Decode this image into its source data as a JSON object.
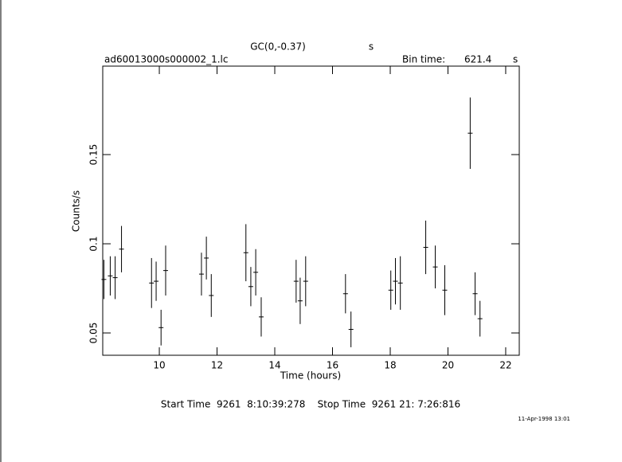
{
  "chart_data": {
    "type": "errorbar",
    "title": "GC(0,-0.37)",
    "title_unit": "s",
    "file_name": "ad60013000s000002_1.lc",
    "bin_time_label": "Bin time:",
    "bin_time": 621.4,
    "bin_time_unit": "s",
    "x_label": "Time (hours)",
    "y_label": "Counts/s",
    "start_stop": "Start Time  9261  8:10:39:278    Stop Time  9261 21: 7:26:816",
    "timestamp": "11-Apr-1998 13:01",
    "color": "#000000",
    "x": [
      8.08,
      8.3,
      8.47,
      8.69,
      9.73,
      9.89,
      10.06,
      10.22,
      11.46,
      11.63,
      11.8,
      13.0,
      13.17,
      13.34,
      13.53,
      14.74,
      14.88,
      15.07,
      16.45,
      16.64,
      18.02,
      18.18,
      18.35,
      19.23,
      19.56,
      19.89,
      20.77,
      20.94,
      21.11
    ],
    "values": [
      0.08,
      0.082,
      0.081,
      0.097,
      0.078,
      0.079,
      0.053,
      0.085,
      0.083,
      0.092,
      0.071,
      0.095,
      0.076,
      0.084,
      0.059,
      0.079,
      0.068,
      0.079,
      0.072,
      0.052,
      0.074,
      0.079,
      0.078,
      0.098,
      0.087,
      0.074,
      0.162,
      0.072,
      0.058
    ],
    "errors": [
      0.011,
      0.011,
      0.012,
      0.013,
      0.014,
      0.011,
      0.01,
      0.014,
      0.012,
      0.012,
      0.012,
      0.016,
      0.011,
      0.013,
      0.011,
      0.012,
      0.013,
      0.014,
      0.011,
      0.01,
      0.011,
      0.013,
      0.015,
      0.015,
      0.012,
      0.014,
      0.02,
      0.012,
      0.01
    ],
    "xlim": [
      8.04,
      22.47
    ],
    "ylim": [
      0.0375,
      0.1996
    ],
    "xticks": [
      10,
      12,
      14,
      16,
      18,
      20,
      22
    ],
    "yticks": [
      0.05,
      0.1,
      0.15
    ]
  }
}
